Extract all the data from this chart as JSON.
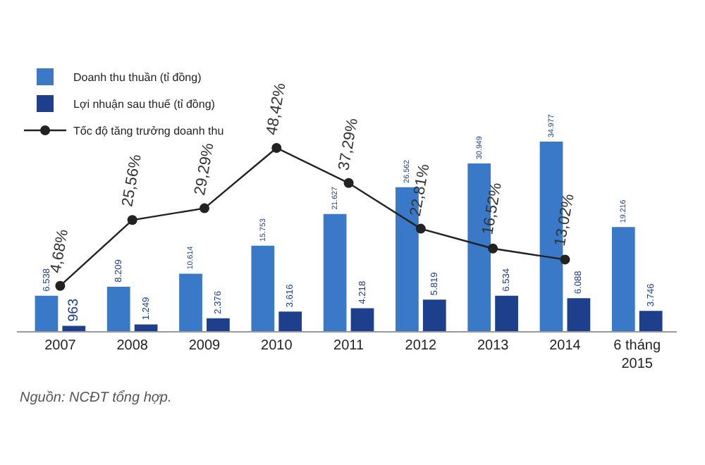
{
  "chart_data": {
    "type": "bar",
    "categories": [
      "2007",
      "2008",
      "2009",
      "2010",
      "2011",
      "2012",
      "2013",
      "2014",
      "6 tháng\n2015"
    ],
    "series": [
      {
        "name": "Doanh thu thuần (tỉ đồng)",
        "color": "#3a78c8",
        "values": [
          6538,
          8209,
          10614,
          15753,
          21627,
          26562,
          30949,
          34977,
          19216
        ],
        "value_labels": [
          "6.538",
          "8.209",
          "10.614",
          "15.753",
          "21.627",
          "26.562",
          "30.949",
          "34.977",
          "19.216"
        ]
      },
      {
        "name": "Lợi nhuận sau thuế (tỉ đồng)",
        "color": "#1e3f8c",
        "values": [
          963,
          1249,
          2376,
          3616,
          4218,
          5819,
          6534,
          6088,
          3746
        ],
        "value_labels": [
          "963",
          "1.249",
          "2.376",
          "3.616",
          "4.218",
          "5.819",
          "6.534",
          "6.088",
          "3.746"
        ]
      },
      {
        "name": "Tốc độ tăng trưởng doanh thu",
        "type": "line",
        "axis": "y2",
        "color": "#222222",
        "marker": "circle",
        "values": [
          4.68,
          25.56,
          29.29,
          48.42,
          37.29,
          22.81,
          16.52,
          13.02,
          null
        ],
        "value_labels": [
          "4,68%",
          "25,56%",
          "29,29%",
          "48,42%",
          "37,29%",
          "22,81%",
          "16,52%",
          "13,02%",
          null
        ]
      }
    ],
    "legend": "top left",
    "annotations": [
      "Nguồn: NCĐT tổng hợp."
    ]
  }
}
